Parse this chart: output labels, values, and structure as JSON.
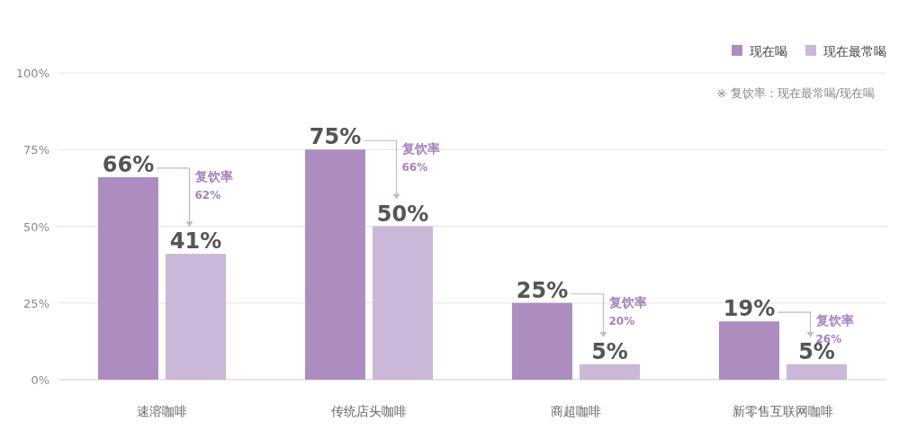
{
  "chart_data": {
    "type": "bar",
    "categories": [
      "速溶咖啡",
      "传统店头咖啡",
      "商超咖啡",
      "新零售互联网咖啡"
    ],
    "series": [
      {
        "name": "现在喝",
        "color": "#ad8dc0",
        "values": [
          66,
          75,
          25,
          19
        ],
        "value_labels": [
          "66%",
          "75%",
          "25%",
          "19%"
        ]
      },
      {
        "name": "现在最常喝",
        "color": "#cbb7d8",
        "values": [
          41,
          50,
          5,
          5
        ],
        "value_labels": [
          "41%",
          "50%",
          "5%",
          "5%"
        ]
      }
    ],
    "ylim": [
      0,
      100
    ],
    "yticks": [
      {
        "value": 0,
        "label": "0%"
      },
      {
        "value": 25,
        "label": "25%"
      },
      {
        "value": 50,
        "label": "50%"
      },
      {
        "value": 75,
        "label": "75%"
      },
      {
        "value": 100,
        "label": "100%"
      }
    ],
    "grid": "y",
    "legend": "top right",
    "annotations": [
      "复饮率\n62%",
      "复饮率\n66%",
      "复饮率\n20%",
      "复饮率\n26%",
      "※ 复饮率：现在最常喝/现在喝"
    ]
  }
}
